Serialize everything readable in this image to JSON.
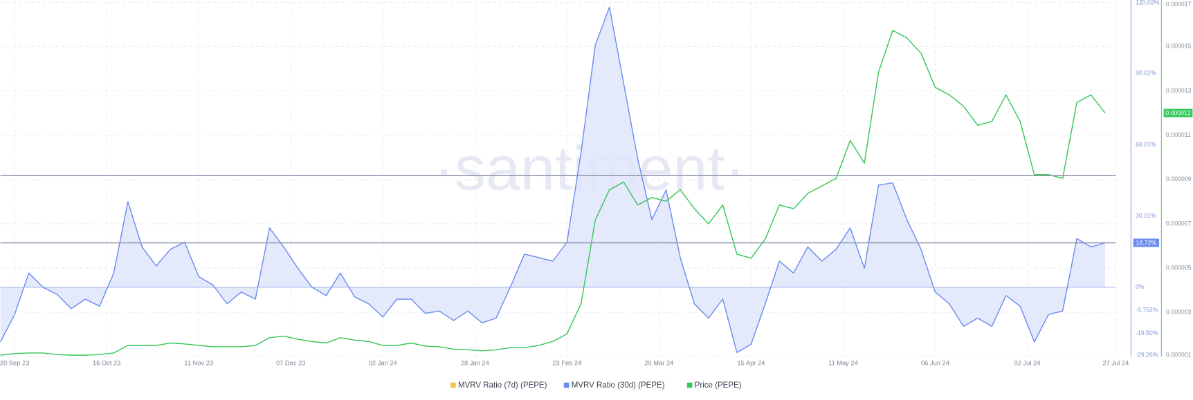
{
  "chart_data": {
    "type": "line",
    "watermark": "·santiment·",
    "x": [
      "2023-09-16",
      "2023-09-20",
      "2023-09-24",
      "2023-09-28",
      "2023-10-02",
      "2023-10-06",
      "2023-10-10",
      "2023-10-14",
      "2023-10-18",
      "2023-10-22",
      "2023-10-26",
      "2023-10-30",
      "2023-11-03",
      "2023-11-07",
      "2023-11-11",
      "2023-11-15",
      "2023-11-19",
      "2023-11-23",
      "2023-11-27",
      "2023-12-01",
      "2023-12-05",
      "2023-12-09",
      "2023-12-13",
      "2023-12-17",
      "2023-12-21",
      "2023-12-25",
      "2023-12-29",
      "2024-01-02",
      "2024-01-06",
      "2024-01-10",
      "2024-01-14",
      "2024-01-18",
      "2024-01-22",
      "2024-01-26",
      "2024-01-30",
      "2024-02-03",
      "2024-02-07",
      "2024-02-11",
      "2024-02-15",
      "2024-02-19",
      "2024-02-23",
      "2024-02-27",
      "2024-03-02",
      "2024-03-06",
      "2024-03-10",
      "2024-03-14",
      "2024-03-18",
      "2024-03-22",
      "2024-03-26",
      "2024-03-30",
      "2024-04-03",
      "2024-04-07",
      "2024-04-11",
      "2024-04-15",
      "2024-04-19",
      "2024-04-23",
      "2024-04-27",
      "2024-05-01",
      "2024-05-05",
      "2024-05-09",
      "2024-05-13",
      "2024-05-17",
      "2024-05-21",
      "2024-05-25",
      "2024-05-29",
      "2024-06-02",
      "2024-06-06",
      "2024-06-10",
      "2024-06-14",
      "2024-06-18",
      "2024-06-22",
      "2024-06-26",
      "2024-06-30",
      "2024-07-04",
      "2024-07-08",
      "2024-07-12",
      "2024-07-16",
      "2024-07-20",
      "2024-07-24"
    ],
    "series": [
      {
        "name": "MVRV Ratio (7d) (PEPE)",
        "color": "#f5c342"
      },
      {
        "name": "MVRV Ratio (30d) (PEPE)",
        "color": "#6b8cef",
        "axis": "y",
        "fill": "#dfe5fb",
        "values": [
          -23,
          -11.5,
          6,
          0,
          -3,
          -9,
          -5,
          -8,
          6,
          36,
          17,
          9,
          16,
          19,
          4.5,
          1,
          -7,
          -2,
          -5,
          25,
          17,
          8,
          0,
          -3.5,
          6,
          -4,
          -7,
          -12.5,
          -5,
          -5,
          -11,
          -10,
          -14,
          -10,
          -15,
          -13,
          0,
          14,
          12.5,
          11,
          19,
          57,
          102,
          118,
          86,
          54,
          28.5,
          41,
          12.5,
          -7,
          -13,
          -5,
          -27.5,
          -24,
          -7,
          11,
          6,
          17,
          11,
          16,
          25,
          8,
          43,
          44,
          28.5,
          16,
          -2,
          -7,
          -16.5,
          -13,
          -16.5,
          -3.5,
          -8,
          -23,
          -11.5,
          -10,
          20.5,
          17,
          18.72
        ]
      },
      {
        "name": "Price (PEPE)",
        "color": "#35c759",
        "axis": "y2",
        "values": [
          1.07e-06,
          1.14e-06,
          1.17e-06,
          1.17e-06,
          1.1e-06,
          1.07e-06,
          1.07e-06,
          1.1e-06,
          1.17e-06,
          1.51e-06,
          1.51e-06,
          1.51e-06,
          1.62e-06,
          1.58e-06,
          1.51e-06,
          1.45e-06,
          1.45e-06,
          1.45e-06,
          1.51e-06,
          1.86e-06,
          1.93e-06,
          1.79e-06,
          1.69e-06,
          1.62e-06,
          1.86e-06,
          1.75e-06,
          1.69e-06,
          1.51e-06,
          1.51e-06,
          1.62e-06,
          1.48e-06,
          1.45e-06,
          1.34e-06,
          1.31e-06,
          1.27e-06,
          1.31e-06,
          1.41e-06,
          1.41e-06,
          1.51e-06,
          1.69e-06,
          2.03e-06,
          3.4e-06,
          7.17e-06,
          8.54e-06,
          8.88e-06,
          7.85e-06,
          8.19e-06,
          8.02e-06,
          8.54e-06,
          7.68e-06,
          7e-06,
          7.85e-06,
          5.63e-06,
          5.45e-06,
          6.31e-06,
          7.85e-06,
          7.68e-06,
          8.37e-06,
          8.71e-06,
          9.05e-06,
          1.076e-05,
          9.74e-06,
          1.385e-05,
          1.573e-05,
          1.539e-05,
          1.47e-05,
          1.316e-05,
          1.282e-05,
          1.231e-05,
          1.145e-05,
          1.162e-05,
          1.282e-05,
          1.162e-05,
          9.22e-06,
          9.22e-06,
          9.05e-06,
          1.248e-05,
          1.282e-05,
          1.2e-05
        ]
      }
    ],
    "xlim": [
      "2023-09-16",
      "2024-07-27"
    ],
    "xticks": [
      {
        "value": "2023-09-20",
        "label": "20 Sep 23"
      },
      {
        "value": "2023-10-16",
        "label": "16 Oct 23"
      },
      {
        "value": "2023-11-11",
        "label": "11 Nov 23"
      },
      {
        "value": "2023-12-07",
        "label": "07 Dec 23"
      },
      {
        "value": "2024-01-02",
        "label": "02 Jan 24"
      },
      {
        "value": "2024-01-28",
        "label": "28 Jan 24"
      },
      {
        "value": "2024-02-23",
        "label": "23 Feb 24"
      },
      {
        "value": "2024-03-20",
        "label": "20 Mar 24"
      },
      {
        "value": "2024-04-15",
        "label": "15 Apr 24"
      },
      {
        "value": "2024-05-11",
        "label": "11 May 24"
      },
      {
        "value": "2024-06-06",
        "label": "06 Jun 24"
      },
      {
        "value": "2024-07-02",
        "label": "02 Jul 24"
      },
      {
        "value": "2024-07-27",
        "label": "27 Jul 24"
      }
    ],
    "ylim": [
      -29.26,
      120.02
    ],
    "yticks": [
      {
        "value": -29.26,
        "label": "-29.26%"
      },
      {
        "value": -19.5,
        "label": "-19.50%"
      },
      {
        "value": -9.752,
        "label": "-9.752%"
      },
      {
        "value": 0,
        "label": "0%"
      },
      {
        "value": 30.01,
        "label": "30.01%"
      },
      {
        "value": 60.01,
        "label": "60.01%"
      },
      {
        "value": 90.02,
        "label": "90.02%"
      },
      {
        "value": 120.02,
        "label": "120.02%"
      }
    ],
    "y2lim": [
      1e-06,
      1.7e-05
    ],
    "y2ticks": [
      1e-06,
      3e-06,
      5e-06,
      7e-06,
      9e-06,
      1.1e-05,
      1.3e-05,
      1.5e-05,
      1.7e-05
    ],
    "reference_lines": [
      47,
      18.72
    ],
    "annotations": [
      {
        "text": "18.72%",
        "value": 18.72,
        "axis": "y",
        "color": "#6b8cef"
      },
      {
        "text": "0.000012",
        "value": 1.2e-05,
        "axis": "y2",
        "color": "#35c759"
      }
    ],
    "grid": true,
    "legend": "bottom"
  }
}
